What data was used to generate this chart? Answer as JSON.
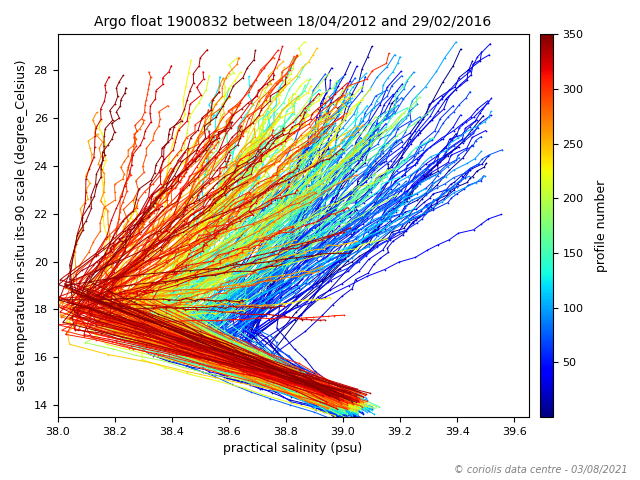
{
  "title": "Argo float 1900832 between 18/04/2012 and 29/02/2016",
  "xlabel": "practical salinity (psu)",
  "ylabel": "sea temperature in-situ its-90 scale (degree_Celsius)",
  "colorbar_label": "profile number",
  "colorbar_ticks": [
    50,
    100,
    150,
    200,
    250,
    300,
    350
  ],
  "xlim": [
    38.0,
    39.65
  ],
  "ylim": [
    13.5,
    29.5
  ],
  "xticks": [
    38.0,
    38.2,
    38.4,
    38.6,
    38.8,
    39.0,
    39.2,
    39.4,
    39.6
  ],
  "yticks": [
    14,
    16,
    18,
    20,
    22,
    24,
    26,
    28
  ],
  "n_profiles": 350,
  "cmap": "jet",
  "footnote": "© coriolis data centre - 03/08/2021",
  "marker_size": 2.5,
  "line_width": 0.7,
  "figsize": [
    6.4,
    4.8
  ],
  "dpi": 100
}
